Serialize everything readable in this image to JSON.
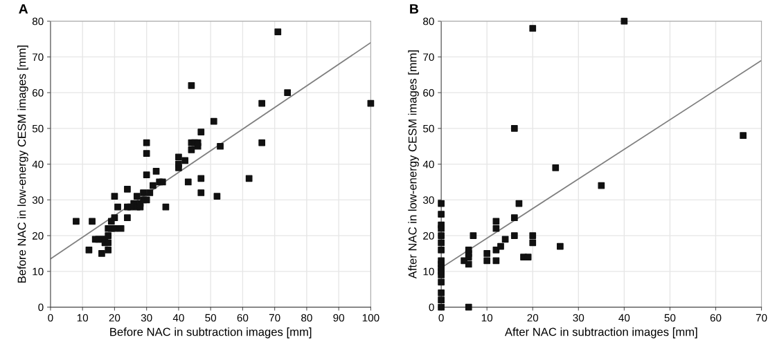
{
  "chart_data": [
    {
      "type": "scatter",
      "title": "A",
      "xlabel": "Before NAC in subtraction images [mm]",
      "ylabel": "Before NAC in low-energy CESM images [mm]",
      "xlim": [
        0,
        100
      ],
      "ylim": [
        0,
        80
      ],
      "xticks": [
        0,
        10,
        20,
        30,
        40,
        50,
        60,
        70,
        80,
        90,
        100
      ],
      "yticks": [
        0,
        10,
        20,
        30,
        40,
        50,
        60,
        70,
        80
      ],
      "grid": true,
      "series": [
        {
          "marker": "square",
          "color": "#111111",
          "x": [
            8,
            12,
            13,
            14,
            15,
            16,
            16,
            17,
            17,
            18,
            18,
            18,
            18,
            19,
            19,
            20,
            20,
            20,
            21,
            22,
            24,
            24,
            24,
            25,
            26,
            27,
            27,
            28,
            28,
            29,
            29,
            30,
            30,
            30,
            30,
            31,
            32,
            33,
            34,
            35,
            36,
            40,
            40,
            40,
            42,
            43,
            44,
            44,
            44,
            45,
            46,
            46,
            47,
            47,
            47,
            51,
            52,
            53,
            62,
            66,
            66,
            71,
            74,
            100
          ],
          "values": [
            24,
            16,
            24,
            19,
            19,
            15,
            19,
            18,
            19,
            20,
            22,
            16,
            18,
            22,
            24,
            22,
            25,
            31,
            28,
            22,
            25,
            28,
            33,
            28,
            29,
            28,
            31,
            28,
            29,
            32,
            30,
            46,
            43,
            37,
            30,
            32,
            34,
            38,
            35,
            35,
            28,
            42,
            39,
            40,
            41,
            35,
            62,
            44,
            46,
            46,
            46,
            45,
            49,
            36,
            32,
            52,
            31,
            45,
            36,
            57,
            46,
            77,
            60,
            57
          ]
        },
        {
          "type": "line",
          "marker": "none",
          "color": "#808080",
          "x": [
            0,
            100
          ],
          "values": [
            13.5,
            74
          ]
        }
      ]
    },
    {
      "type": "scatter",
      "title": "B",
      "xlabel": "After NAC in subtraction images [mm]",
      "ylabel": "After NAC in low-energy CESM images [mm]",
      "xlim": [
        0,
        70
      ],
      "ylim": [
        0,
        80
      ],
      "xticks": [
        0,
        10,
        20,
        30,
        40,
        50,
        60,
        70
      ],
      "yticks": [
        0,
        10,
        20,
        30,
        40,
        50,
        60,
        70,
        80
      ],
      "grid": true,
      "series": [
        {
          "marker": "square",
          "color": "#111111",
          "x": [
            0,
            0,
            0,
            0,
            0,
            0,
            0,
            0,
            0,
            0,
            0,
            0,
            0,
            0,
            0,
            0,
            5,
            6,
            6,
            6,
            6,
            6,
            7,
            10,
            10,
            12,
            12,
            12,
            12,
            13,
            14,
            16,
            16,
            16,
            17,
            18,
            19,
            20,
            20,
            20,
            25,
            26,
            35,
            40,
            66
          ],
          "values": [
            0,
            2,
            4,
            7,
            9,
            10,
            11,
            12,
            13,
            16,
            18,
            20,
            22,
            23,
            26,
            29,
            13,
            12,
            14,
            15,
            16,
            0,
            20,
            13,
            15,
            13,
            16,
            22,
            24,
            17,
            19,
            20,
            25,
            50,
            29,
            14,
            14,
            20,
            18,
            78,
            39,
            17,
            34,
            80,
            48
          ]
        },
        {
          "type": "line",
          "marker": "none",
          "color": "#808080",
          "x": [
            0,
            70
          ],
          "values": [
            11,
            69
          ]
        }
      ]
    }
  ]
}
